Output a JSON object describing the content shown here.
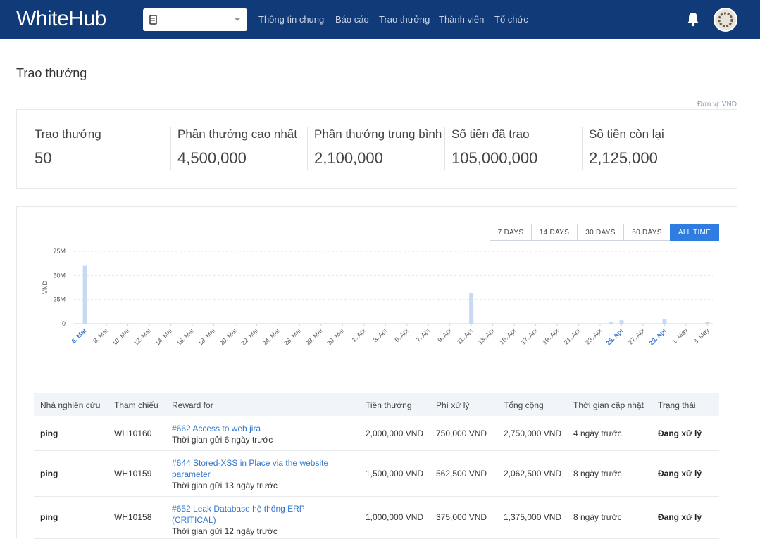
{
  "nav": {
    "logo": "WhiteHub",
    "links": [
      "Thông tin chung",
      "Báo cáo",
      "Trao thưởng",
      "Thành viên",
      "Tổ chức"
    ]
  },
  "page_title": "Trao thưởng",
  "unit_note": "Đơn vị: VND",
  "stats": [
    {
      "label": "Trao thưởng",
      "value": "50"
    },
    {
      "label": "Phần thưởng cao nhất",
      "value": "4,500,000"
    },
    {
      "label": "Phần thưởng trung bình",
      "value": "2,100,000"
    },
    {
      "label": "Số tiền đã trao",
      "value": "105,000,000"
    },
    {
      "label": "Số tiền còn lại",
      "value": "2,125,000"
    }
  ],
  "range_buttons": [
    "7 DAYS",
    "14 DAYS",
    "30 DAYS",
    "60 DAYS",
    "ALL TIME"
  ],
  "active_range": 4,
  "chart_data": {
    "type": "bar",
    "y_label": "VND",
    "color": "#c8d9f4",
    "grid": true,
    "highlight_color": "#2f6fc9",
    "highlighted": [
      0,
      50,
      54
    ],
    "categories": [
      "6. Mar",
      null,
      "8. Mar",
      null,
      "10. Mar",
      null,
      "12. Mar",
      null,
      "14. Mar",
      null,
      "16. Mar",
      null,
      "18. Mar",
      null,
      "20. Mar",
      null,
      "22. Mar",
      null,
      "24. Mar",
      null,
      "26. Mar",
      null,
      "28. Mar",
      null,
      "30. Mar",
      null,
      "1. Apr",
      null,
      "3. Apr",
      null,
      "5. Apr",
      null,
      "7. Apr",
      null,
      "9. Apr",
      null,
      "11. Apr",
      null,
      "13. Apr",
      null,
      "15. Apr",
      null,
      "17. Apr",
      null,
      "19. Apr",
      null,
      "21. Apr",
      null,
      "23. Apr",
      null,
      "25. Apr",
      null,
      "27. Apr",
      null,
      "29. Apr",
      null,
      "1. May",
      null,
      "3. May"
    ],
    "values": [
      60000000,
      0,
      0,
      0,
      0,
      0,
      0,
      0,
      0,
      0,
      0,
      0,
      0,
      0,
      0,
      0,
      0,
      0,
      0,
      0,
      0,
      0,
      0,
      0,
      0,
      0,
      0,
      0,
      0,
      0,
      0,
      0,
      0,
      0,
      0,
      0,
      32000000,
      0,
      0,
      0,
      0,
      0,
      0,
      0,
      0,
      0,
      0,
      0,
      0,
      2000000,
      3500000,
      0,
      0,
      0,
      4500000,
      0,
      0,
      0,
      1500000
    ],
    "ylim": [
      0,
      75000000
    ],
    "yticks": [
      0,
      {
        "value": 25000000,
        "label": "25M"
      },
      {
        "value": 50000000,
        "label": "50M"
      },
      {
        "value": 75000000,
        "label": "75M"
      }
    ]
  },
  "table": {
    "columns": [
      "Nhà nghiên cứu",
      "Tham chiếu",
      "Reward for",
      "Tiền thưởng",
      "Phí xử lý",
      "Tổng cộng",
      "Thời gian cập nhật",
      "Trạng thái"
    ],
    "rows": [
      {
        "researcher": "ping",
        "reference": "WH10160",
        "reward_title": "#662 Access to web jira",
        "reward_sub": "Thời gian gửi 6 ngày trước",
        "reward": "2,000,000 VND",
        "fee": "750,000 VND",
        "total": "2,750,000 VND",
        "updated": "4 ngày trước",
        "status": "Đang xử lý"
      },
      {
        "researcher": "ping",
        "reference": "WH10159",
        "reward_title": "#644 Stored-XSS in Place via the website parameter",
        "reward_sub": "Thời gian gửi 13 ngày trước",
        "reward": "1,500,000 VND",
        "fee": "562,500 VND",
        "total": "2,062,500 VND",
        "updated": "8 ngày trước",
        "status": "Đang xử lý"
      },
      {
        "researcher": "ping",
        "reference": "WH10158",
        "reward_title": "#652 Leak Database hệ thống ERP (CRITICAL)",
        "reward_sub": "Thời gian gửi 12 ngày trước",
        "reward": "1,000,000 VND",
        "fee": "375,000 VND",
        "total": "1,375,000 VND",
        "updated": "8 ngày trước",
        "status": "Đang xử lý"
      }
    ]
  }
}
